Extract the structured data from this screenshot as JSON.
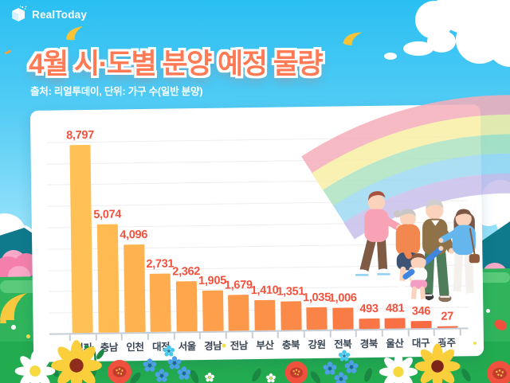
{
  "brand": {
    "logo_text": "RealToday"
  },
  "header": {
    "title": "4월 시·도별 분양 예정 물량",
    "subtitle": "출처: 리얼투데이, 단위: 가구 수(일반 분양)"
  },
  "chart_data": {
    "type": "bar",
    "title": "4월 시·도별 분양 예정 물량",
    "source_note": "출처: 리얼투데이, 단위: 가구 수(일반 분양)",
    "unit": "가구 수(일반 분양)",
    "categories": [
      "경기",
      "충남",
      "인천",
      "대전",
      "서울",
      "경남",
      "전남",
      "부산",
      "충북",
      "강원",
      "전북",
      "경북",
      "울산",
      "대구",
      "광주"
    ],
    "values": [
      8797,
      5074,
      4096,
      2731,
      2362,
      1905,
      1679,
      1410,
      1351,
      1035,
      1006,
      493,
      481,
      346,
      27
    ],
    "value_labels": [
      "8,797",
      "5,074",
      "4,096",
      "2,731",
      "2,362",
      "1,905",
      "1,679",
      "1,410",
      "1,351",
      "1,035",
      "1,006",
      "493",
      "481",
      "346",
      "27"
    ],
    "ylim": [
      0,
      9000
    ],
    "gridline_interval": 1000,
    "grid": true,
    "legend": false,
    "bar_colors": [
      "#FFC155",
      "#FFBA52",
      "#FFB350",
      "#FFAD4F",
      "#FFA64D",
      "#FE9F4C",
      "#FD984B",
      "#FC914A",
      "#FB8A49",
      "#FA8348",
      "#F97C47",
      "#F87546",
      "#F87044",
      "#F76B43",
      "#F66641"
    ],
    "value_label_color": "#F4513C",
    "category_label_color": "#3A4654",
    "grid_color": "#EDEDEF",
    "axis_color": "#C7CDD5"
  },
  "palette": {
    "sky_top": "#2ABFF2",
    "title_orange": "#FF7A55",
    "card_bg": "#FFFFFF",
    "grass_green": "#2FB45B",
    "mountain_teal": "#0E7A8B",
    "blossom_pink": "#F57FAC"
  }
}
